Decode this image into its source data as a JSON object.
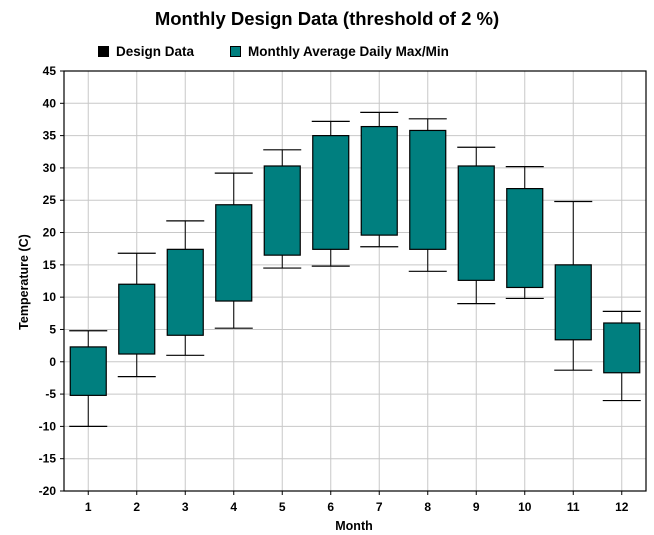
{
  "chart_data": {
    "type": "box",
    "title": "Monthly Design Data (threshold of 2 %)",
    "xlabel": "Month",
    "ylabel": "Temperature (C)",
    "ylim": [
      -20,
      45
    ],
    "yticks": [
      -20,
      -15,
      -10,
      -5,
      0,
      5,
      10,
      15,
      20,
      25,
      30,
      35,
      40,
      45
    ],
    "grid": true,
    "legend": [
      {
        "label": "Design Data",
        "color": "#000000"
      },
      {
        "label": "Monthly Average Daily Max/Min",
        "color": "#007f7f"
      }
    ],
    "categories": [
      "1",
      "2",
      "3",
      "4",
      "5",
      "6",
      "7",
      "8",
      "9",
      "10",
      "11",
      "12"
    ],
    "series": [
      {
        "name": "Design Data",
        "low": [
          -10,
          -2.3,
          1,
          5.2,
          14.5,
          14.8,
          17.8,
          14,
          9,
          9.8,
          -1.3,
          -6
        ],
        "high": [
          4.8,
          16.8,
          21.8,
          29.2,
          32.8,
          37.2,
          38.6,
          37.6,
          33.2,
          30.2,
          24.8,
          7.8
        ]
      },
      {
        "name": "Monthly Average Daily Max/Min",
        "min": [
          -5.2,
          1.2,
          4.1,
          9.4,
          16.5,
          17.4,
          19.6,
          17.4,
          12.6,
          11.5,
          3.4,
          -1.7
        ],
        "max": [
          2.3,
          12,
          17.4,
          24.3,
          30.3,
          35,
          36.4,
          35.8,
          30.3,
          26.8,
          15,
          6
        ]
      }
    ]
  }
}
